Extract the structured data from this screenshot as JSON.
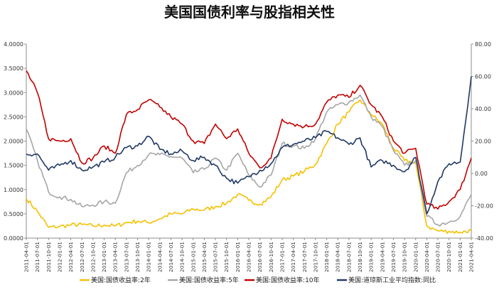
{
  "chart_data": {
    "type": "line",
    "title": "美国国债利率与股指相关性",
    "left_axis": {
      "ylim": [
        0,
        4
      ],
      "ticks": [
        "0.0000",
        "0.5000",
        "1.0000",
        "1.5000",
        "2.0000",
        "2.5000",
        "3.0000",
        "3.5000",
        "4.0000"
      ]
    },
    "right_axis": {
      "ylim": [
        -40,
        80
      ],
      "ticks": [
        "-40.00",
        "-20.00",
        "0.00",
        "20.00",
        "40.00",
        "60.00",
        "80.00"
      ]
    },
    "x_ticks": [
      "2011-04-01",
      "2011-07-01",
      "2011-10-01",
      "2012-01-01",
      "2012-04-01",
      "2012-07-01",
      "2012-10-01",
      "2013-01-01",
      "2013-04-01",
      "2013-07-01",
      "2013-10-01",
      "2014-01-01",
      "2014-04-01",
      "2014-07-01",
      "2014-10-01",
      "2015-01-01",
      "2015-04-01",
      "2015-07-01",
      "2015-10-01",
      "2016-01-01",
      "2016-04-01",
      "2016-07-01",
      "2016-10-01",
      "2017-01-01",
      "2017-04-01",
      "2017-07-01",
      "2017-10-01",
      "2018-01-01",
      "2018-04-01",
      "2018-07-01",
      "2018-10-01",
      "2019-01-01",
      "2019-04-01",
      "2019-07-01",
      "2019-10-01",
      "2020-01-01",
      "2020-04-01",
      "2020-07-01",
      "2020-10-01",
      "2021-01-01",
      "2021-04-01"
    ],
    "series": [
      {
        "name": "美国:国债收益率:2年",
        "axis": "left",
        "color": "#F5C000",
        "points": [
          [
            0,
            0.82
          ],
          [
            1,
            0.55
          ],
          [
            2,
            0.22
          ],
          [
            3,
            0.24
          ],
          [
            4,
            0.27
          ],
          [
            5,
            0.28
          ],
          [
            6,
            0.25
          ],
          [
            7,
            0.27
          ],
          [
            8,
            0.25
          ],
          [
            9,
            0.32
          ],
          [
            10,
            0.35
          ],
          [
            11,
            0.32
          ],
          [
            12,
            0.4
          ],
          [
            13,
            0.5
          ],
          [
            14,
            0.5
          ],
          [
            15,
            0.6
          ],
          [
            16,
            0.58
          ],
          [
            17,
            0.65
          ],
          [
            18,
            0.72
          ],
          [
            19,
            0.9
          ],
          [
            20,
            0.78
          ],
          [
            21,
            0.7
          ],
          [
            22,
            0.85
          ],
          [
            23,
            1.2
          ],
          [
            24,
            1.28
          ],
          [
            25,
            1.38
          ],
          [
            26,
            1.52
          ],
          [
            27,
            1.95
          ],
          [
            28,
            2.35
          ],
          [
            29,
            2.6
          ],
          [
            30,
            2.85
          ],
          [
            31,
            2.55
          ],
          [
            32,
            2.35
          ],
          [
            33,
            1.85
          ],
          [
            34,
            1.6
          ],
          [
            35,
            1.55
          ],
          [
            36,
            0.25
          ],
          [
            37,
            0.15
          ],
          [
            38,
            0.14
          ],
          [
            39,
            0.12
          ],
          [
            40,
            0.16
          ]
        ]
      },
      {
        "name": "美国:国债收益率:5年",
        "axis": "left",
        "color": "#A6A6A6",
        "points": [
          [
            0,
            2.25
          ],
          [
            1,
            1.6
          ],
          [
            2,
            0.95
          ],
          [
            3,
            0.85
          ],
          [
            4,
            0.8
          ],
          [
            5,
            0.65
          ],
          [
            6,
            0.68
          ],
          [
            7,
            0.75
          ],
          [
            8,
            0.72
          ],
          [
            9,
            1.35
          ],
          [
            10,
            1.5
          ],
          [
            11,
            1.72
          ],
          [
            12,
            1.72
          ],
          [
            13,
            1.68
          ],
          [
            14,
            1.65
          ],
          [
            15,
            1.35
          ],
          [
            16,
            1.42
          ],
          [
            17,
            1.65
          ],
          [
            18,
            1.4
          ],
          [
            19,
            1.75
          ],
          [
            20,
            1.3
          ],
          [
            21,
            1.05
          ],
          [
            22,
            1.3
          ],
          [
            23,
            1.95
          ],
          [
            24,
            1.9
          ],
          [
            25,
            1.85
          ],
          [
            26,
            2.05
          ],
          [
            27,
            2.6
          ],
          [
            28,
            2.75
          ],
          [
            29,
            2.8
          ],
          [
            30,
            2.95
          ],
          [
            31,
            2.5
          ],
          [
            32,
            2.3
          ],
          [
            33,
            1.8
          ],
          [
            34,
            1.5
          ],
          [
            35,
            1.6
          ],
          [
            36,
            0.45
          ],
          [
            37,
            0.28
          ],
          [
            38,
            0.33
          ],
          [
            39,
            0.45
          ],
          [
            40,
            0.9
          ]
        ]
      },
      {
        "name": "美国:国债收益率:10年",
        "axis": "left",
        "color": "#C00000",
        "points": [
          [
            0,
            3.45
          ],
          [
            1,
            3.0
          ],
          [
            2,
            2.05
          ],
          [
            3,
            2.0
          ],
          [
            4,
            2.05
          ],
          [
            5,
            1.55
          ],
          [
            6,
            1.65
          ],
          [
            7,
            1.9
          ],
          [
            8,
            1.75
          ],
          [
            9,
            2.55
          ],
          [
            10,
            2.65
          ],
          [
            11,
            2.85
          ],
          [
            12,
            2.7
          ],
          [
            13,
            2.5
          ],
          [
            14,
            2.35
          ],
          [
            15,
            2.0
          ],
          [
            16,
            1.95
          ],
          [
            17,
            2.35
          ],
          [
            18,
            2.05
          ],
          [
            19,
            2.25
          ],
          [
            20,
            1.75
          ],
          [
            21,
            1.45
          ],
          [
            22,
            1.65
          ],
          [
            23,
            2.45
          ],
          [
            24,
            2.35
          ],
          [
            25,
            2.3
          ],
          [
            26,
            2.35
          ],
          [
            27,
            2.8
          ],
          [
            28,
            2.95
          ],
          [
            29,
            2.9
          ],
          [
            30,
            3.15
          ],
          [
            31,
            2.75
          ],
          [
            32,
            2.5
          ],
          [
            33,
            2.0
          ],
          [
            34,
            1.75
          ],
          [
            35,
            1.85
          ],
          [
            36,
            0.7
          ],
          [
            37,
            0.6
          ],
          [
            38,
            0.75
          ],
          [
            39,
            1.0
          ],
          [
            40,
            1.65
          ]
        ]
      },
      {
        "name": "美国:道琼斯工业平均指数:同比",
        "axis": "right",
        "color": "#1F3864",
        "points": [
          [
            0,
            12
          ],
          [
            1,
            12
          ],
          [
            2,
            2
          ],
          [
            3,
            5
          ],
          [
            4,
            8
          ],
          [
            5,
            2
          ],
          [
            6,
            4
          ],
          [
            7,
            7
          ],
          [
            8,
            10
          ],
          [
            9,
            16
          ],
          [
            10,
            17
          ],
          [
            11,
            23
          ],
          [
            12,
            15
          ],
          [
            13,
            12
          ],
          [
            14,
            14
          ],
          [
            15,
            8
          ],
          [
            16,
            10
          ],
          [
            17,
            5
          ],
          [
            18,
            -3
          ],
          [
            19,
            -6
          ],
          [
            20,
            -2
          ],
          [
            21,
            2
          ],
          [
            22,
            6
          ],
          [
            23,
            16
          ],
          [
            24,
            18
          ],
          [
            25,
            20
          ],
          [
            26,
            22
          ],
          [
            27,
            26
          ],
          [
            28,
            22
          ],
          [
            29,
            18
          ],
          [
            30,
            22
          ],
          [
            31,
            4
          ],
          [
            32,
            8
          ],
          [
            33,
            5
          ],
          [
            34,
            1
          ],
          [
            35,
            10
          ],
          [
            36,
            -25
          ],
          [
            37,
            -5
          ],
          [
            38,
            6
          ],
          [
            39,
            7
          ],
          [
            40,
            60
          ]
        ]
      }
    ]
  }
}
